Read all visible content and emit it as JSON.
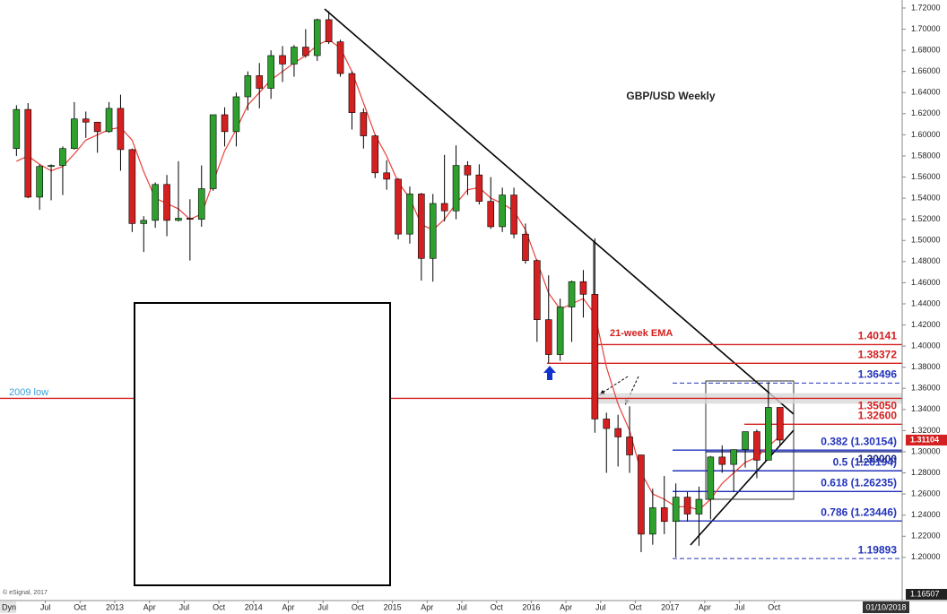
{
  "chart_data": {
    "type": "candlestick",
    "title": "GBP/USD Weekly",
    "menu": "Dyn",
    "source": "© eSignal, 2017",
    "date_label": "01/10/2018",
    "x": [
      "2012-04",
      "2012-05",
      "2012-06",
      "2012-07",
      "2012-08",
      "2012-09",
      "2012-10",
      "2012-11",
      "2012-12",
      "2013-01",
      "2013-02",
      "2013-03",
      "2013-04",
      "2013-05",
      "2013-06",
      "2013-07",
      "2013-08",
      "2013-09",
      "2013-10",
      "2013-11",
      "2013-12",
      "2014-01",
      "2014-02",
      "2014-03",
      "2014-04",
      "2014-05",
      "2014-06",
      "2014-07",
      "2014-08",
      "2014-09",
      "2014-10",
      "2014-11",
      "2014-12",
      "2015-01",
      "2015-02",
      "2015-03",
      "2015-04",
      "2015-05",
      "2015-06",
      "2015-07",
      "2015-08",
      "2015-09",
      "2015-10",
      "2015-11",
      "2015-12",
      "2016-01",
      "2016-02",
      "2016-03",
      "2016-04",
      "2016-05",
      "2016-06",
      "2016-07",
      "2016-08",
      "2016-09",
      "2016-10",
      "2016-11",
      "2016-12",
      "2017-01",
      "2017-02",
      "2017-03",
      "2017-04",
      "2017-05",
      "2017-06",
      "2017-07",
      "2017-08",
      "2017-09",
      "2017-10"
    ],
    "open": [
      1.587,
      1.624,
      1.541,
      1.57,
      1.571,
      1.587,
      1.615,
      1.612,
      1.603,
      1.625,
      1.586,
      1.516,
      1.519,
      1.553,
      1.519,
      1.521,
      1.52,
      1.549,
      1.619,
      1.603,
      1.636,
      1.656,
      1.644,
      1.675,
      1.667,
      1.683,
      1.675,
      1.709,
      1.688,
      1.658,
      1.621,
      1.599,
      1.564,
      1.558,
      1.506,
      1.544,
      1.483,
      1.535,
      1.528,
      1.571,
      1.562,
      1.537,
      1.513,
      1.543,
      1.506,
      1.481,
      1.425,
      1.392,
      1.437,
      1.461,
      1.449,
      1.331,
      1.322,
      1.314,
      1.297,
      1.222,
      1.247,
      1.234,
      1.257,
      1.241,
      1.255,
      1.295,
      1.288,
      1.302,
      1.319,
      1.292,
      1.342
    ],
    "high": [
      1.628,
      1.63,
      1.572,
      1.572,
      1.589,
      1.631,
      1.622,
      1.612,
      1.631,
      1.638,
      1.587,
      1.523,
      1.555,
      1.562,
      1.575,
      1.539,
      1.571,
      1.619,
      1.626,
      1.64,
      1.66,
      1.668,
      1.68,
      1.684,
      1.685,
      1.7,
      1.71,
      1.717,
      1.69,
      1.66,
      1.625,
      1.6,
      1.576,
      1.559,
      1.551,
      1.545,
      1.544,
      1.581,
      1.59,
      1.575,
      1.572,
      1.56,
      1.55,
      1.55,
      1.516,
      1.482,
      1.467,
      1.445,
      1.462,
      1.472,
      1.502,
      1.337,
      1.335,
      1.343,
      1.297,
      1.265,
      1.277,
      1.27,
      1.262,
      1.267,
      1.296,
      1.306,
      1.301,
      1.319,
      1.321,
      1.366,
      1.342
    ],
    "low": [
      1.58,
      1.54,
      1.529,
      1.538,
      1.543,
      1.586,
      1.597,
      1.583,
      1.602,
      1.566,
      1.508,
      1.489,
      1.512,
      1.504,
      1.518,
      1.481,
      1.513,
      1.547,
      1.589,
      1.589,
      1.623,
      1.625,
      1.634,
      1.65,
      1.655,
      1.673,
      1.67,
      1.686,
      1.655,
      1.605,
      1.587,
      1.559,
      1.548,
      1.501,
      1.497,
      1.462,
      1.461,
      1.518,
      1.52,
      1.543,
      1.534,
      1.511,
      1.508,
      1.502,
      1.478,
      1.404,
      1.384,
      1.386,
      1.404,
      1.427,
      1.318,
      1.28,
      1.286,
      1.28,
      1.205,
      1.212,
      1.222,
      1.2,
      1.234,
      1.211,
      1.236,
      1.28,
      1.262,
      1.285,
      1.275,
      1.292,
      1.306
    ],
    "close": [
      1.624,
      1.541,
      1.57,
      1.571,
      1.587,
      1.615,
      1.612,
      1.603,
      1.625,
      1.586,
      1.516,
      1.519,
      1.553,
      1.519,
      1.521,
      1.52,
      1.549,
      1.619,
      1.603,
      1.636,
      1.656,
      1.644,
      1.675,
      1.667,
      1.683,
      1.675,
      1.709,
      1.688,
      1.658,
      1.621,
      1.599,
      1.564,
      1.558,
      1.506,
      1.544,
      1.483,
      1.535,
      1.528,
      1.571,
      1.562,
      1.537,
      1.513,
      1.543,
      1.506,
      1.481,
      1.425,
      1.392,
      1.437,
      1.461,
      1.449,
      1.331,
      1.322,
      1.314,
      1.297,
      1.222,
      1.247,
      1.234,
      1.257,
      1.241,
      1.255,
      1.295,
      1.288,
      1.302,
      1.319,
      1.292,
      1.342,
      1.311
    ],
    "up_color": "#2ea02e",
    "down_color": "#d42020",
    "series": [
      {
        "name": "21-week EMA",
        "color": "#e8403a",
        "values": [
          1.575,
          1.58,
          1.572,
          1.566,
          1.57,
          1.582,
          1.595,
          1.6,
          1.605,
          1.607,
          1.595,
          1.565,
          1.54,
          1.535,
          1.53,
          1.52,
          1.525,
          1.555,
          1.585,
          1.605,
          1.628,
          1.64,
          1.652,
          1.66,
          1.668,
          1.675,
          1.685,
          1.69,
          1.682,
          1.66,
          1.63,
          1.6,
          1.58,
          1.555,
          1.54,
          1.515,
          1.51,
          1.52,
          1.535,
          1.548,
          1.55,
          1.54,
          1.535,
          1.528,
          1.51,
          1.48,
          1.45,
          1.435,
          1.44,
          1.445,
          1.43,
          1.38,
          1.345,
          1.32,
          1.28,
          1.26,
          1.255,
          1.248,
          1.248,
          1.245,
          1.255,
          1.27,
          1.28,
          1.29,
          1.295,
          1.305,
          1.315
        ]
      }
    ],
    "ylim": [
      1.16507,
      1.7276
    ],
    "yticks": [
      {
        "value": 1.2,
        "label": "1.20000"
      },
      {
        "value": 1.22,
        "label": "1.22000"
      },
      {
        "value": 1.24,
        "label": "1.24000"
      },
      {
        "value": 1.26,
        "label": "1.26000"
      },
      {
        "value": 1.28,
        "label": "1.28000"
      },
      {
        "value": 1.3,
        "label": "1.30000"
      },
      {
        "value": 1.32,
        "label": "1.32000"
      },
      {
        "value": 1.34,
        "label": "1.34000"
      },
      {
        "value": 1.36,
        "label": "1.36000"
      },
      {
        "value": 1.38,
        "label": "1.38000"
      },
      {
        "value": 1.4,
        "label": "1.40000"
      },
      {
        "value": 1.42,
        "label": "1.42000"
      },
      {
        "value": 1.44,
        "label": "1.44000"
      },
      {
        "value": 1.46,
        "label": "1.46000"
      },
      {
        "value": 1.48,
        "label": "1.48000"
      },
      {
        "value": 1.5,
        "label": "1.50000"
      },
      {
        "value": 1.52,
        "label": "1.52000"
      },
      {
        "value": 1.54,
        "label": "1.54000"
      },
      {
        "value": 1.56,
        "label": "1.56000"
      },
      {
        "value": 1.58,
        "label": "1.58000"
      },
      {
        "value": 1.6,
        "label": "1.60000"
      },
      {
        "value": 1.62,
        "label": "1.62000"
      },
      {
        "value": 1.64,
        "label": "1.64000"
      },
      {
        "value": 1.66,
        "label": "1.66000"
      },
      {
        "value": 1.68,
        "label": "1.68000"
      },
      {
        "value": 1.7,
        "label": "1.70000"
      },
      {
        "value": 1.72,
        "label": "1.72000"
      }
    ],
    "xticks": [
      {
        "value": "2012-07",
        "label": "Jul"
      },
      {
        "value": "2012-10",
        "label": "Oct"
      },
      {
        "value": "2013-01",
        "label": "2013"
      },
      {
        "value": "2013-04",
        "label": "Apr"
      },
      {
        "value": "2013-07",
        "label": "Jul"
      },
      {
        "value": "2013-10",
        "label": "Oct"
      },
      {
        "value": "2014-01",
        "label": "2014"
      },
      {
        "value": "2014-04",
        "label": "Apr"
      },
      {
        "value": "2014-07",
        "label": "Jul"
      },
      {
        "value": "2014-10",
        "label": "Oct"
      },
      {
        "value": "2015-01",
        "label": "2015"
      },
      {
        "value": "2015-04",
        "label": "Apr"
      },
      {
        "value": "2015-07",
        "label": "Jul"
      },
      {
        "value": "2015-10",
        "label": "Oct"
      },
      {
        "value": "2016-01",
        "label": "2016"
      },
      {
        "value": "2016-04",
        "label": "Apr"
      },
      {
        "value": "2016-07",
        "label": "Jul"
      },
      {
        "value": "2016-10",
        "label": "Oct"
      },
      {
        "value": "2017-01",
        "label": "2017"
      },
      {
        "value": "2017-04",
        "label": "Apr"
      },
      {
        "value": "2017-07",
        "label": "Jul"
      },
      {
        "value": "2017-10",
        "label": "Oct"
      }
    ],
    "last_price": {
      "value": 1.31104,
      "label": "1.31104",
      "color": "#d42020"
    },
    "axis_bottom": {
      "value": 1.16507,
      "label": "1.16507"
    },
    "annotation": "2009 low",
    "levels": [
      {
        "value": 1.40141,
        "label": "1.40141",
        "color": "#d42020",
        "style": "solid"
      },
      {
        "value": 1.38372,
        "label": "1.38372",
        "color": "#d42020",
        "style": "solid"
      },
      {
        "value": 1.36496,
        "label": "1.36496",
        "color": "#2233bb",
        "style": "dashed"
      },
      {
        "value": 1.3505,
        "label": "1.35050",
        "color": "#d42020",
        "style": "solid"
      },
      {
        "value": 1.326,
        "label": "1.32600",
        "color": "#d42020",
        "style": "solid"
      },
      {
        "value": 1.30154,
        "label": "0.382 (1.30154)",
        "color": "#2233bb",
        "style": "solid"
      },
      {
        "value": 1.3,
        "label": "1.30000",
        "color": "#1a237e",
        "style": "solid"
      },
      {
        "value": 1.28194,
        "label": "0.5 (1.28194)",
        "color": "#2233bb",
        "style": "solid"
      },
      {
        "value": 1.26235,
        "label": "0.618 (1.26235)",
        "color": "#2233bb",
        "style": "solid"
      },
      {
        "value": 1.23446,
        "label": "0.786 (1.23446)",
        "color": "#2233bb",
        "style": "solid"
      },
      {
        "value": 1.19893,
        "label": "1.19893",
        "color": "#2233bb",
        "style": "dashed"
      }
    ]
  }
}
